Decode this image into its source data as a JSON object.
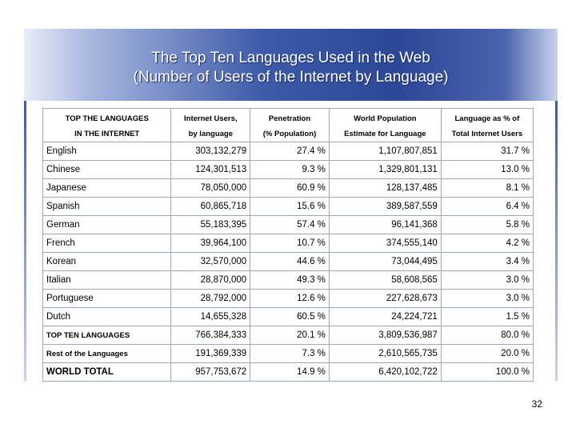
{
  "banner": {
    "title_line1": "The Top Ten Languages Used in the Web",
    "title_line2": "(Number of Users of the Internet by Language)"
  },
  "table": {
    "headers": [
      {
        "line1": "TOP THE LANGUAGES",
        "line2": "IN THE INTERNET"
      },
      {
        "line1": "Internet Users,",
        "line2": "by language"
      },
      {
        "line1": "Penetration",
        "line2": "(% Population)"
      },
      {
        "line1": "World Population",
        "line2": "Estimate for Language"
      },
      {
        "line1": "Language as % of",
        "line2": "Total Internet Users"
      }
    ],
    "rows": [
      {
        "lang": "English",
        "users": "303,132,279",
        "pen": "27.4 %",
        "pop": "1,107,807,851",
        "pct": "31.7 %"
      },
      {
        "lang": "Chinese",
        "users": "124,301,513",
        "pen": "9.3 %",
        "pop": "1,329,801,131",
        "pct": "13.0 %"
      },
      {
        "lang": "Japanese",
        "users": "78,050,000",
        "pen": "60.9 %",
        "pop": "128,137,485",
        "pct": "8.1 %"
      },
      {
        "lang": "Spanish",
        "users": "60,865,718",
        "pen": "15.6 %",
        "pop": "389,587,559",
        "pct": "6.4 %"
      },
      {
        "lang": "German",
        "users": "55,183,395",
        "pen": "57.4 %",
        "pop": "96,141,368",
        "pct": "5.8 %"
      },
      {
        "lang": "French",
        "users": "39,964,100",
        "pen": "10.7 %",
        "pop": "374,555,140",
        "pct": "4.2 %"
      },
      {
        "lang": "Korean",
        "users": "32,570,000",
        "pen": "44.6 %",
        "pop": "73,044,495",
        "pct": "3.4 %"
      },
      {
        "lang": "Italian",
        "users": "28,870,000",
        "pen": "49.3 %",
        "pop": "58,608,565",
        "pct": "3.0 %"
      },
      {
        "lang": "Portuguese",
        "users": "28,792,000",
        "pen": "12.6 %",
        "pop": "227,628,673",
        "pct": "3.0 %"
      },
      {
        "lang": "Dutch",
        "users": "14,655,328",
        "pen": "60.5 %",
        "pop": "24,224,721",
        "pct": "1.5 %"
      },
      {
        "lang": "TOP TEN LANGUAGES",
        "users": "766,384,333",
        "pen": "20.1 %",
        "pop": "3,809,536,987",
        "pct": "80.0 %"
      },
      {
        "lang": "Rest of the Languages",
        "users": "191,369,339",
        "pen": "7.3 %",
        "pop": "2,610,565,735",
        "pct": "20.0 %"
      },
      {
        "lang": "WORLD TOTAL",
        "users": "957,753,672",
        "pen": "14.9 %",
        "pop": "6,420,102,722",
        "pct": "100.0 %"
      }
    ]
  },
  "page_number": "32"
}
